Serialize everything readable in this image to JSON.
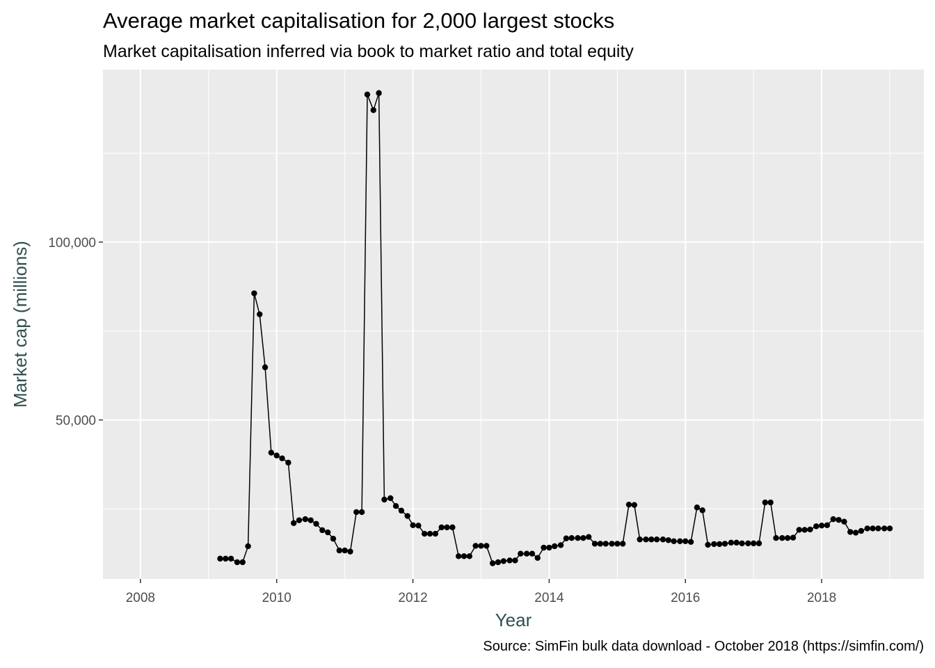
{
  "chart_data": {
    "type": "line",
    "title": "Average market capitalisation for 2,000 largest stocks",
    "subtitle": "Market capitalisation inferred via book to market ratio and total equity",
    "caption": "Source: SimFin bulk data download - October 2018 (https://simfin.com/)",
    "xlabel": "Year",
    "ylabel": "Market cap (millions)",
    "x_ticks": [
      2008,
      2010,
      2012,
      2014,
      2016,
      2018
    ],
    "x_tick_labels": [
      "2008",
      "2010",
      "2012",
      "2014",
      "2016",
      "2018"
    ],
    "y_ticks": [
      50000,
      100000
    ],
    "y_tick_labels": [
      "50,000",
      "100,000"
    ],
    "xlim": [
      2007.45,
      2019.5
    ],
    "ylim": [
      5300,
      148500
    ],
    "grid": true,
    "markers": true,
    "series": [
      {
        "x": [
          2009.17,
          2009.25,
          2009.33,
          2009.42,
          2009.5,
          2009.58,
          2009.67,
          2009.75,
          2009.83,
          2009.92,
          2010.0,
          2010.08,
          2010.17,
          2010.25,
          2010.33,
          2010.42,
          2010.5,
          2010.58,
          2010.67,
          2010.75,
          2010.83,
          2010.92,
          2011.0,
          2011.08,
          2011.17,
          2011.25,
          2011.33,
          2011.42,
          2011.5,
          2011.58,
          2011.67,
          2011.75,
          2011.83,
          2011.92,
          2012.0,
          2012.08,
          2012.17,
          2012.25,
          2012.33,
          2012.42,
          2012.5,
          2012.58,
          2012.67,
          2012.75,
          2012.83,
          2012.92,
          2013.0,
          2013.08,
          2013.17,
          2013.25,
          2013.33,
          2013.42,
          2013.5,
          2013.58,
          2013.67,
          2013.75,
          2013.83,
          2013.92,
          2014.0,
          2014.08,
          2014.17,
          2014.25,
          2014.33,
          2014.42,
          2014.5,
          2014.58,
          2014.67,
          2014.75,
          2014.83,
          2014.92,
          2015.0,
          2015.08,
          2015.17,
          2015.25,
          2015.33,
          2015.42,
          2015.5,
          2015.58,
          2015.67,
          2015.75,
          2015.83,
          2015.92,
          2016.0,
          2016.08,
          2016.17,
          2016.25,
          2016.33,
          2016.42,
          2016.5,
          2016.58,
          2016.67,
          2016.75,
          2016.83,
          2016.92,
          2017.0,
          2017.08,
          2017.17,
          2017.25,
          2017.33,
          2017.42,
          2017.5,
          2017.58,
          2017.67,
          2017.75,
          2017.83,
          2017.92,
          2018.0,
          2018.08,
          2018.17,
          2018.25,
          2018.33,
          2018.42,
          2018.5,
          2018.58,
          2018.67,
          2018.75,
          2018.83,
          2018.92,
          2019.0
        ],
        "y": [
          11000,
          11000,
          11000,
          10000,
          10000,
          14500,
          85600,
          79700,
          64800,
          40800,
          40000,
          39200,
          38000,
          21000,
          21800,
          22100,
          21800,
          20800,
          19000,
          18400,
          16600,
          13300,
          13300,
          13000,
          24100,
          24100,
          141500,
          137100,
          141900,
          27600,
          28000,
          25800,
          24500,
          23000,
          20400,
          20300,
          18000,
          18000,
          18000,
          19800,
          19800,
          19800,
          11700,
          11700,
          11700,
          14600,
          14600,
          14600,
          9700,
          10000,
          10300,
          10500,
          10500,
          12400,
          12400,
          12400,
          11200,
          14100,
          14100,
          14500,
          14800,
          16700,
          16800,
          16800,
          16800,
          17100,
          15200,
          15200,
          15200,
          15200,
          15200,
          15200,
          26200,
          26100,
          16400,
          16400,
          16400,
          16400,
          16400,
          16200,
          15900,
          15900,
          15900,
          15700,
          25400,
          24600,
          14900,
          15100,
          15100,
          15200,
          15500,
          15500,
          15300,
          15300,
          15300,
          15300,
          26800,
          26800,
          16800,
          16800,
          16800,
          16900,
          19100,
          19100,
          19200,
          20100,
          20300,
          20400,
          22100,
          21900,
          21400,
          18500,
          18300,
          18800,
          19500,
          19500,
          19500,
          19500,
          19500
        ]
      }
    ]
  }
}
